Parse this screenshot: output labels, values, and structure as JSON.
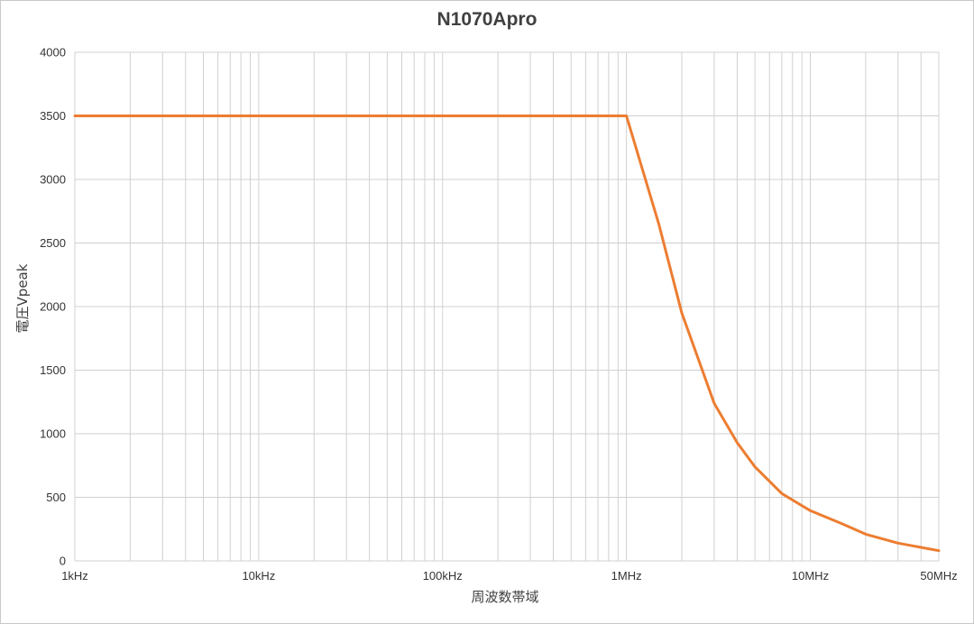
{
  "chart_data": {
    "type": "line",
    "title": "N1070Apro",
    "xlabel": "周波数帯域",
    "ylabel": "電圧Vpeak",
    "x_scale": "log",
    "xlim": [
      1000,
      50000000
    ],
    "ylim": [
      0,
      4000
    ],
    "grid": true,
    "x_ticks": [
      {
        "value": 1000,
        "label": "1kHz"
      },
      {
        "value": 10000,
        "label": "10kHz"
      },
      {
        "value": 100000,
        "label": "100kHz"
      },
      {
        "value": 1000000,
        "label": "1MHz"
      },
      {
        "value": 10000000,
        "label": "10MHz"
      },
      {
        "value": 50000000,
        "label": "50MHz"
      }
    ],
    "y_ticks": [
      0,
      500,
      1000,
      1500,
      2000,
      2500,
      3000,
      3500,
      4000
    ],
    "series": [
      {
        "color": "#ED7D31",
        "points": [
          [
            1000,
            3500
          ],
          [
            1000000,
            3500
          ],
          [
            1500000,
            2650
          ],
          [
            2000000,
            1950
          ],
          [
            3000000,
            1240
          ],
          [
            4000000,
            930
          ],
          [
            5000000,
            740
          ],
          [
            7000000,
            530
          ],
          [
            10000000,
            395
          ],
          [
            15000000,
            290
          ],
          [
            20000000,
            210
          ],
          [
            30000000,
            140
          ],
          [
            50000000,
            80
          ]
        ]
      }
    ]
  }
}
